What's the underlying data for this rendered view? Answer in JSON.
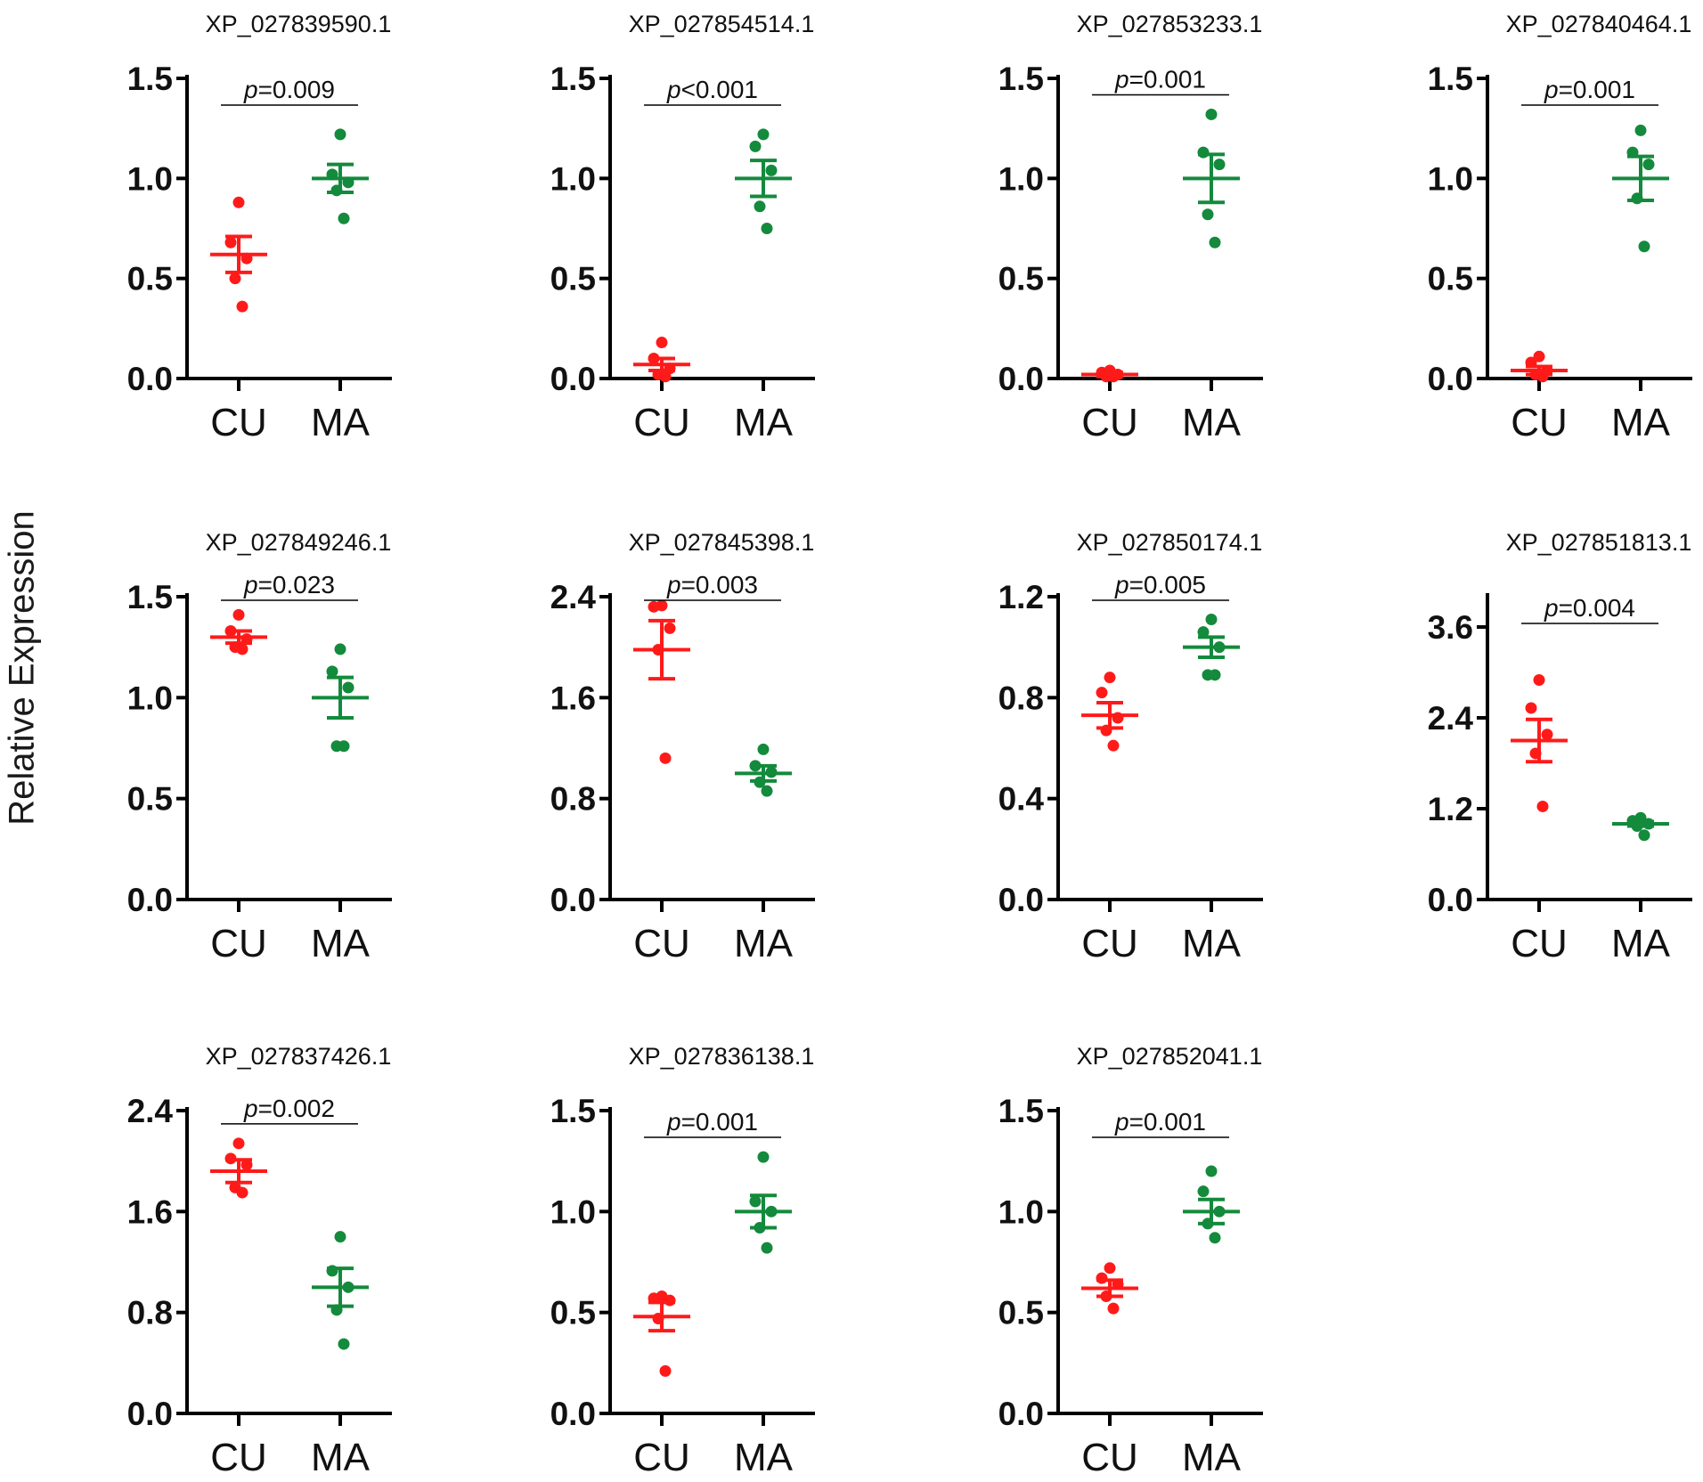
{
  "figure": {
    "ylabel": "Relative Expression"
  },
  "chart_data": [
    {
      "type": "scatter",
      "title": "XP_027839590.1",
      "categories": [
        "CU",
        "MA"
      ],
      "yticks": [
        "0.0",
        "0.5",
        "1.0",
        "1.5"
      ],
      "ylim": [
        0,
        1.5
      ],
      "p_label": "p",
      "p_text": "=0.009",
      "colors": {
        "CU": "#ff1a1a",
        "MA": "#138a3c"
      },
      "series": [
        {
          "name": "CU",
          "mean": 0.62,
          "sem": 0.09,
          "points": [
            0.88,
            0.68,
            0.6,
            0.5,
            0.36
          ]
        },
        {
          "name": "MA",
          "mean": 1.0,
          "sem": 0.07,
          "points": [
            1.22,
            1.02,
            0.98,
            0.94,
            0.8
          ]
        }
      ]
    },
    {
      "type": "scatter",
      "title": "XP_027854514.1",
      "categories": [
        "CU",
        "MA"
      ],
      "yticks": [
        "0.0",
        "0.5",
        "1.0",
        "1.5"
      ],
      "ylim": [
        0,
        1.5
      ],
      "p_label": "p",
      "p_text": "<0.001",
      "colors": {
        "CU": "#ff1a1a",
        "MA": "#138a3c"
      },
      "series": [
        {
          "name": "CU",
          "mean": 0.07,
          "sem": 0.03,
          "points": [
            0.18,
            0.1,
            0.05,
            0.02,
            0.01
          ]
        },
        {
          "name": "MA",
          "mean": 1.0,
          "sem": 0.09,
          "points": [
            1.22,
            1.16,
            1.04,
            0.86,
            0.75
          ]
        }
      ]
    },
    {
      "type": "scatter",
      "title": "XP_027853233.1",
      "categories": [
        "CU",
        "MA"
      ],
      "yticks": [
        "0.0",
        "0.5",
        "1.0",
        "1.5"
      ],
      "ylim": [
        0,
        1.5
      ],
      "p_label": "p",
      "p_text": "=0.001",
      "colors": {
        "CU": "#ff1a1a",
        "MA": "#138a3c"
      },
      "series": [
        {
          "name": "CU",
          "mean": 0.02,
          "sem": 0.01,
          "points": [
            0.04,
            0.03,
            0.02,
            0.01,
            0.01
          ]
        },
        {
          "name": "MA",
          "mean": 1.0,
          "sem": 0.12,
          "points": [
            1.32,
            1.13,
            1.07,
            0.82,
            0.68
          ]
        }
      ]
    },
    {
      "type": "scatter",
      "title": "XP_027840464.1",
      "categories": [
        "CU",
        "MA"
      ],
      "yticks": [
        "0.0",
        "0.5",
        "1.0",
        "1.5"
      ],
      "ylim": [
        0,
        1.5
      ],
      "p_label": "p",
      "p_text": "=0.001",
      "colors": {
        "CU": "#ff1a1a",
        "MA": "#138a3c"
      },
      "series": [
        {
          "name": "CU",
          "mean": 0.04,
          "sem": 0.02,
          "points": [
            0.11,
            0.08,
            0.04,
            0.02,
            0.01
          ]
        },
        {
          "name": "MA",
          "mean": 1.0,
          "sem": 0.11,
          "points": [
            1.24,
            1.13,
            1.07,
            0.9,
            0.66
          ]
        }
      ]
    },
    {
      "type": "scatter",
      "title": "XP_027849246.1",
      "categories": [
        "CU",
        "MA"
      ],
      "yticks": [
        "0.0",
        "0.5",
        "1.0",
        "1.5"
      ],
      "ylim": [
        0,
        1.5
      ],
      "p_label": "p",
      "p_text": "=0.023",
      "colors": {
        "CU": "#ff1a1a",
        "MA": "#138a3c"
      },
      "series": [
        {
          "name": "CU",
          "mean": 1.3,
          "sem": 0.03,
          "points": [
            1.41,
            1.33,
            1.29,
            1.25,
            1.24
          ]
        },
        {
          "name": "MA",
          "mean": 1.0,
          "sem": 0.1,
          "points": [
            1.24,
            1.13,
            1.05,
            0.76,
            0.76
          ]
        }
      ]
    },
    {
      "type": "scatter",
      "title": "XP_027845398.1",
      "categories": [
        "CU",
        "MA"
      ],
      "yticks": [
        "0.0",
        "0.8",
        "1.6",
        "2.4"
      ],
      "ylim": [
        0,
        2.4
      ],
      "p_label": "p",
      "p_text": "=0.003",
      "colors": {
        "CU": "#ff1a1a",
        "MA": "#138a3c"
      },
      "series": [
        {
          "name": "CU",
          "mean": 1.98,
          "sem": 0.23,
          "points": [
            2.33,
            2.32,
            2.15,
            1.98,
            1.12
          ]
        },
        {
          "name": "MA",
          "mean": 1.0,
          "sem": 0.06,
          "points": [
            1.19,
            1.06,
            1.01,
            0.93,
            0.86
          ]
        }
      ]
    },
    {
      "type": "scatter",
      "title": "XP_027850174.1",
      "categories": [
        "CU",
        "MA"
      ],
      "yticks": [
        "0.0",
        "0.4",
        "0.8",
        "1.2"
      ],
      "ylim": [
        0,
        1.2
      ],
      "p_label": "p",
      "p_text": "=0.005",
      "colors": {
        "CU": "#ff1a1a",
        "MA": "#138a3c"
      },
      "series": [
        {
          "name": "CU",
          "mean": 0.73,
          "sem": 0.05,
          "points": [
            0.88,
            0.82,
            0.72,
            0.67,
            0.61
          ]
        },
        {
          "name": "MA",
          "mean": 1.0,
          "sem": 0.04,
          "points": [
            1.11,
            1.06,
            1.0,
            0.89,
            0.89
          ]
        }
      ]
    },
    {
      "type": "scatter",
      "title": "XP_027851813.1",
      "categories": [
        "CU",
        "MA"
      ],
      "yticks": [
        "0.0",
        "1.2",
        "2.4",
        "3.6"
      ],
      "ylim": [
        0,
        4.0
      ],
      "p_label": "p",
      "p_text": "=0.004",
      "colors": {
        "CU": "#ff1a1a",
        "MA": "#138a3c"
      },
      "series": [
        {
          "name": "CU",
          "mean": 2.1,
          "sem": 0.28,
          "points": [
            2.9,
            2.53,
            2.18,
            1.93,
            1.23
          ]
        },
        {
          "name": "MA",
          "mean": 1.0,
          "sem": 0.03,
          "points": [
            1.08,
            1.04,
            1.0,
            0.97,
            0.85
          ]
        }
      ]
    },
    {
      "type": "scatter",
      "title": "XP_027837426.1",
      "categories": [
        "CU",
        "MA"
      ],
      "yticks": [
        "0.0",
        "0.8",
        "1.6",
        "2.4"
      ],
      "ylim": [
        0,
        2.4
      ],
      "p_label": "p",
      "p_text": "=0.002",
      "colors": {
        "CU": "#ff1a1a",
        "MA": "#138a3c"
      },
      "series": [
        {
          "name": "CU",
          "mean": 1.92,
          "sem": 0.09,
          "points": [
            2.14,
            2.02,
            1.97,
            1.79,
            1.75
          ]
        },
        {
          "name": "MA",
          "mean": 1.0,
          "sem": 0.15,
          "points": [
            1.4,
            1.13,
            1.0,
            0.82,
            0.55
          ]
        }
      ]
    },
    {
      "type": "scatter",
      "title": "XP_027836138.1",
      "categories": [
        "CU",
        "MA"
      ],
      "yticks": [
        "0.0",
        "0.5",
        "1.0",
        "1.5"
      ],
      "ylim": [
        0,
        1.5
      ],
      "p_label": "p",
      "p_text": "=0.001",
      "colors": {
        "CU": "#ff1a1a",
        "MA": "#138a3c"
      },
      "series": [
        {
          "name": "CU",
          "mean": 0.48,
          "sem": 0.07,
          "points": [
            0.58,
            0.57,
            0.56,
            0.47,
            0.21
          ]
        },
        {
          "name": "MA",
          "mean": 1.0,
          "sem": 0.08,
          "points": [
            1.27,
            1.05,
            1.0,
            0.92,
            0.82
          ]
        }
      ]
    },
    {
      "type": "scatter",
      "title": "XP_027852041.1",
      "categories": [
        "CU",
        "MA"
      ],
      "yticks": [
        "0.0",
        "0.5",
        "1.0",
        "1.5"
      ],
      "ylim": [
        0,
        1.5
      ],
      "p_label": "p",
      "p_text": "=0.001",
      "colors": {
        "CU": "#ff1a1a",
        "MA": "#138a3c"
      },
      "series": [
        {
          "name": "CU",
          "mean": 0.62,
          "sem": 0.04,
          "points": [
            0.72,
            0.67,
            0.64,
            0.58,
            0.52
          ]
        },
        {
          "name": "MA",
          "mean": 1.0,
          "sem": 0.06,
          "points": [
            1.2,
            1.1,
            1.0,
            0.94,
            0.87
          ]
        }
      ]
    }
  ]
}
